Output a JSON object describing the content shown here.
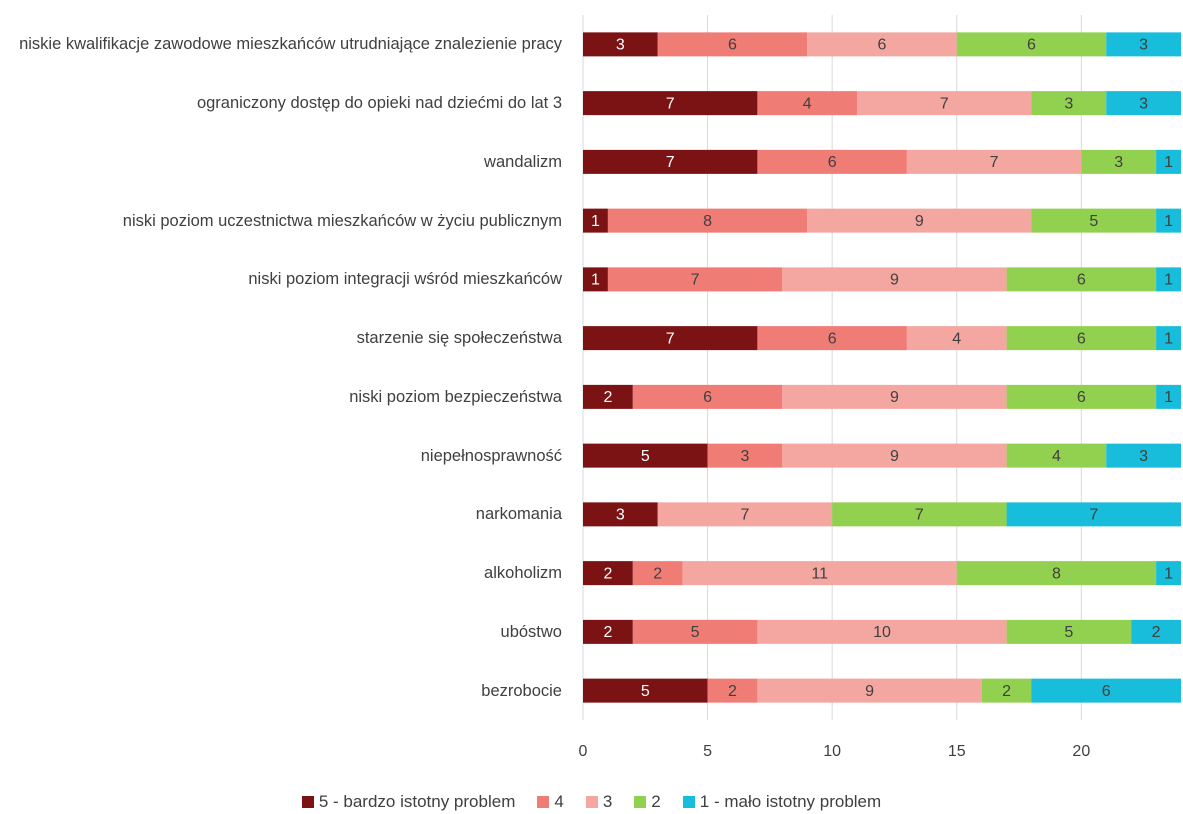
{
  "chart_data": {
    "type": "bar",
    "orientation": "horizontal",
    "stacked": true,
    "categories": [
      "niskie kwalifikacje zawodowe mieszkańców utrudniające znalezienie pracy",
      "ograniczony dostęp do opieki nad dziećmi do lat 3",
      "wandalizm",
      "niski poziom uczestnictwa mieszkańców w życiu publicznym",
      "niski poziom integracji wśród mieszkańców",
      "starzenie się społeczeństwa",
      "niski poziom bezpieczeństwa",
      "niepełnosprawność",
      "narkomania",
      "alkoholizm",
      "ubóstwo",
      "bezrobocie"
    ],
    "series": [
      {
        "name": "5 - bardzo istotny problem",
        "color": "#7b1213",
        "values": [
          3,
          7,
          7,
          1,
          1,
          7,
          2,
          5,
          3,
          2,
          2,
          5
        ]
      },
      {
        "name": "4",
        "color": "#f07c76",
        "values": [
          6,
          4,
          6,
          8,
          7,
          6,
          6,
          3,
          null,
          2,
          5,
          2
        ]
      },
      {
        "name": "3",
        "color": "#f4a7a1",
        "values": [
          6,
          7,
          7,
          9,
          9,
          4,
          9,
          9,
          7,
          11,
          10,
          9
        ]
      },
      {
        "name": "2",
        "color": "#92d050",
        "values": [
          6,
          3,
          3,
          5,
          6,
          6,
          6,
          4,
          7,
          8,
          5,
          2
        ]
      },
      {
        "name": "1 - mało istotny problem",
        "color": "#17bdda",
        "values": [
          3,
          3,
          1,
          1,
          1,
          1,
          1,
          3,
          7,
          1,
          2,
          6
        ]
      }
    ],
    "xlim": [
      0,
      24
    ],
    "xticks": [
      0,
      5,
      10,
      15,
      20
    ],
    "grid": true,
    "legend": "bottom"
  }
}
